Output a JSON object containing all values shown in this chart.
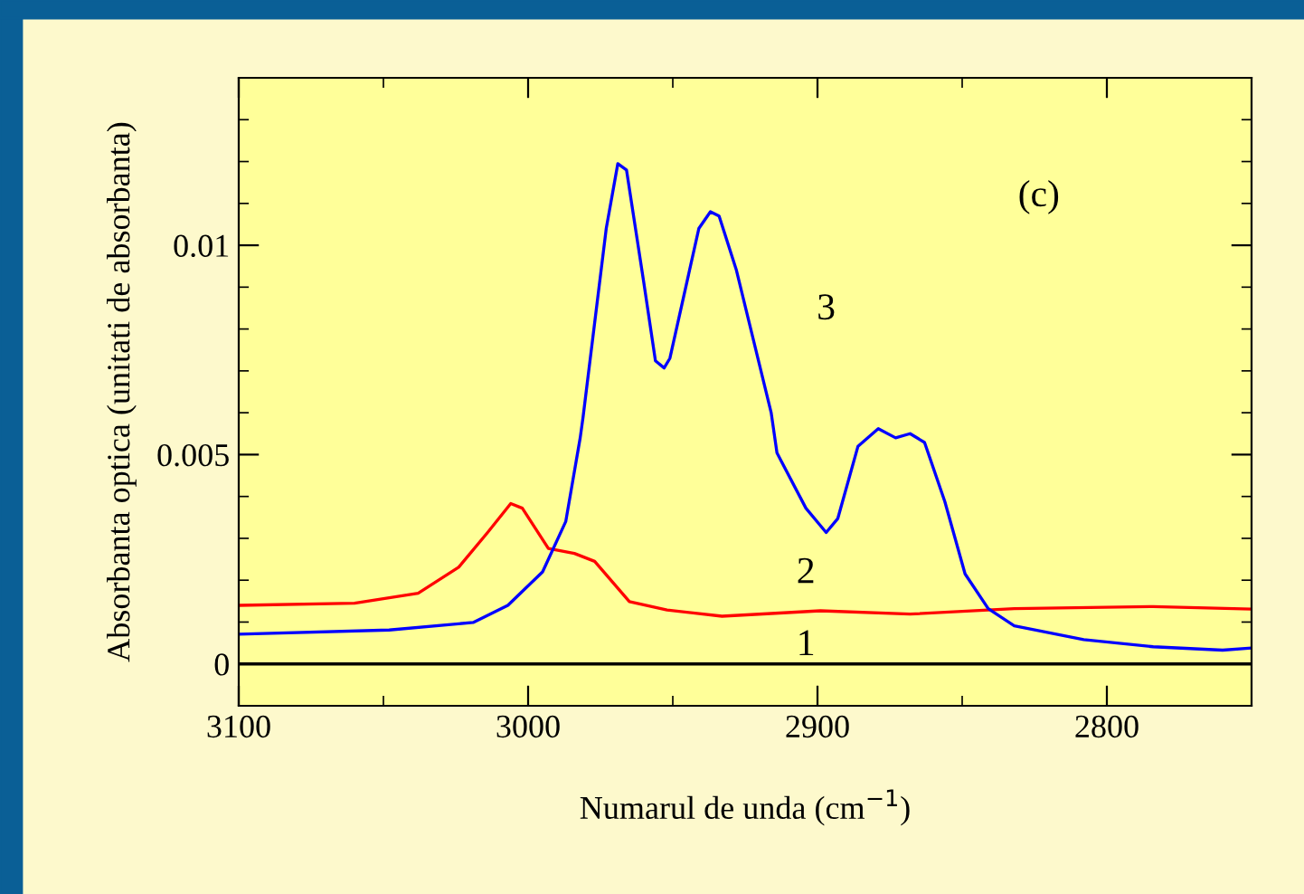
{
  "chart_data": {
    "type": "line",
    "xlabel": "Numarul de unda (cm$^{−1}$)",
    "ylabel": "Absorbanta optica (unitati de absorbanta)",
    "xlim": [
      3100,
      2750
    ],
    "xticks": [
      3100,
      3000,
      2900,
      2800
    ],
    "ylim": [
      -0.001,
      0.014
    ],
    "yticks": [
      0,
      0.005,
      0.01
    ],
    "grid": false,
    "legend": false,
    "marker": "none",
    "line_style": "solid",
    "annotations": [
      "(c)"
    ],
    "series": [
      {
        "name": "1",
        "color": "#000000",
        "x": [
          3100,
          3030,
          2950,
          2850,
          2750
        ],
        "values": [
          0,
          0,
          0,
          0,
          0
        ]
      },
      {
        "name": "2",
        "color": "#ff0000",
        "x": [
          3100,
          3060,
          3038,
          3024,
          3014,
          3006,
          3002,
          2993,
          2984,
          2977,
          2965,
          2952,
          2933,
          2899,
          2868,
          2832,
          2784,
          2750
        ],
        "values": [
          0.0014,
          0.00145,
          0.00169,
          0.00231,
          0.00314,
          0.00383,
          0.00372,
          0.00276,
          0.00264,
          0.00245,
          0.00149,
          0.00129,
          0.00114,
          0.00127,
          0.00119,
          0.00132,
          0.00137,
          0.00131
        ]
      },
      {
        "name": "3",
        "color": "#0000ff",
        "x": [
          3100,
          3048,
          3019,
          3007,
          2995,
          2987,
          2982,
          2981,
          2973,
          2969,
          2966,
          2960,
          2956,
          2953,
          2951,
          2941,
          2937,
          2934,
          2928,
          2916,
          2914,
          2904,
          2897,
          2893,
          2886,
          2879,
          2873,
          2868,
          2863,
          2856,
          2849,
          2841,
          2832,
          2808,
          2784,
          2760,
          2750
        ],
        "values": [
          0.00071,
          0.00081,
          0.00099,
          0.0014,
          0.0022,
          0.0034,
          0.0054,
          0.0059,
          0.0104,
          0.01195,
          0.0118,
          0.0091,
          0.00724,
          0.00707,
          0.0073,
          0.0104,
          0.0108,
          0.0107,
          0.0094,
          0.006,
          0.00504,
          0.00372,
          0.00314,
          0.00347,
          0.0052,
          0.00562,
          0.0054,
          0.0055,
          0.00529,
          0.00388,
          0.00215,
          0.00132,
          0.00091,
          0.00058,
          0.00041,
          0.00033,
          0.00038
        ]
      }
    ]
  }
}
